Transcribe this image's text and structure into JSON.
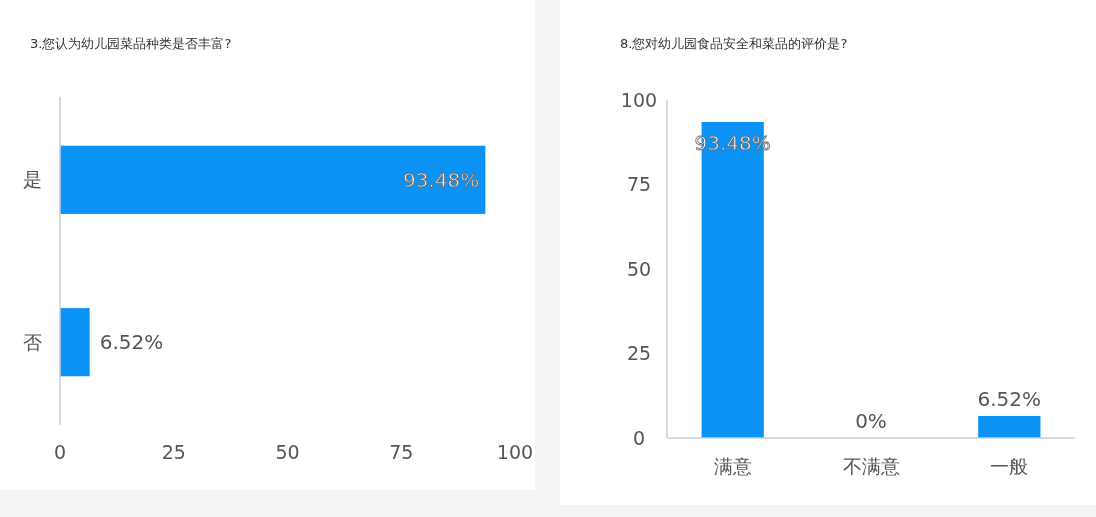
{
  "chart_data": [
    {
      "type": "bar",
      "orientation": "horizontal",
      "title": "3.您认为幼儿园菜品种类是否丰富?",
      "categories": [
        "是",
        "否"
      ],
      "values": [
        93.48,
        6.52
      ],
      "value_labels": [
        "93.48%",
        "6.52%"
      ],
      "color": "#0a93f5",
      "xlim": [
        0,
        100
      ],
      "xticks": [
        0,
        25,
        50,
        75,
        100
      ],
      "grid": false
    },
    {
      "type": "bar",
      "title": "8.您对幼儿园食品安全和菜品的评价是?",
      "categories": [
        "满意",
        "不满意",
        "一般"
      ],
      "values": [
        93.48,
        0,
        6.52
      ],
      "value_labels": [
        "93.48%",
        "0%",
        "6.52%"
      ],
      "color": "#0a93f5",
      "ylim": [
        0,
        100
      ],
      "yticks": [
        0,
        25,
        50,
        75,
        100
      ],
      "grid": false
    }
  ]
}
